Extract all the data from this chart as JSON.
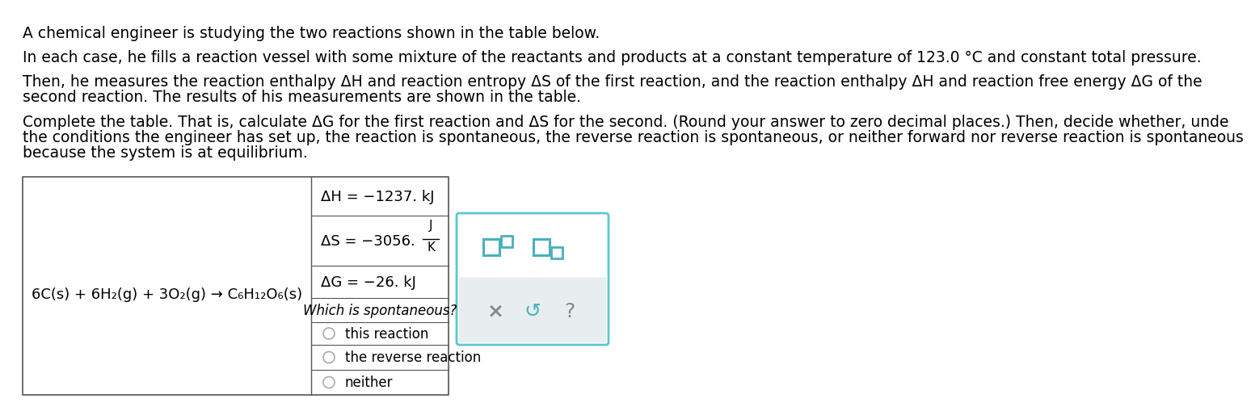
{
  "title_line1": "A chemical engineer is studying the two reactions shown in the table below.",
  "para1": "In each case, he fills a reaction vessel with some mixture of the reactants and products at a constant temperature of 123.0 °C and constant total pressure.",
  "para2_line1": "Then, he measures the reaction enthalpy ΔH and reaction entropy ΔS of the first reaction, and the reaction enthalpy ΔH and reaction free energy ΔG of the",
  "para2_line2": "second reaction. The results of his measurements are shown in the table.",
  "para3_line1": "Complete the table. That is, calculate ΔG for the first reaction and ΔS for the second. (Round your answer to zero decimal places.) Then, decide whether, unde",
  "para3_line2": "the conditions the engineer has set up, the reaction is spontaneous, the reverse reaction is spontaneous, or neither forward nor reverse reaction is spontaneous",
  "para3_line3": "because the system is at equilibrium.",
  "reaction": "6C(s) + 6H₂(g) + 3O₂(g) → C₆H₁₂O₆(s)",
  "dH_label": "ΔH = −1237. kJ",
  "dS_label": "ΔS = −3056.",
  "dS_units_num": "J",
  "dS_units_den": "K",
  "dG_label": "ΔG = −26. kJ",
  "spontaneous_q": "Which is spontaneous?",
  "option1": "this reaction",
  "option2": "the reverse reaction",
  "option3": "neither",
  "bg_color": "#ffffff",
  "table_border_color": "#555555",
  "text_color": "#000000",
  "right_box_border": "#5bc8d0",
  "right_box_bg": "#ffffff",
  "right_box_bottom_bg": "#e8eef0",
  "icon_color": "#4ab0bc",
  "radio_color": "#aaaaaa",
  "gray_x_color": "#888888",
  "gray_q_color": "#888888"
}
